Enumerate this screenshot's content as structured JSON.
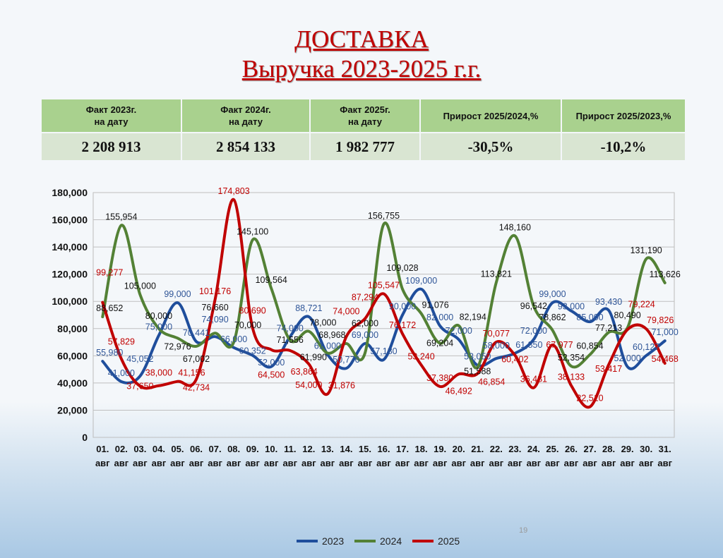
{
  "title_line1": "ДОСТАВКА",
  "title_line2": "Выручка 2023-2025 г.г. ",
  "summary_table": {
    "headers": [
      [
        "Факт 2023г.",
        "на дату"
      ],
      [
        "Факт 2024г.",
        "на дату"
      ],
      [
        "Факт 2025г.",
        "на дату"
      ],
      [
        "Прирост 2025/2024,%",
        ""
      ],
      [
        "Прирост 2025/2023,%",
        ""
      ]
    ],
    "values": [
      "2 208 913",
      "2 854 133",
      "1 982 777",
      "-30,5%",
      "-10,2%"
    ]
  },
  "page_number": "19",
  "chart_data": {
    "type": "line",
    "title": "",
    "xlabel": "",
    "ylabel": "",
    "ylim": [
      0,
      180000
    ],
    "yticks": [
      "0",
      "20,000",
      "40,000",
      "60,000",
      "80,000",
      "100,000",
      "120,000",
      "140,000",
      "160,000",
      "180,000"
    ],
    "grid": true,
    "legend_position": "bottom",
    "categories": [
      "01.",
      "02.",
      "03.",
      "04.",
      "05.",
      "06.",
      "07.",
      "08.",
      "09.",
      "10.",
      "11.",
      "12.",
      "13.",
      "14.",
      "15.",
      "16.",
      "17.",
      "18.",
      "19.",
      "20.",
      "21.",
      "22.",
      "23.",
      "24.",
      "25.",
      "26.",
      "27.",
      "28.",
      "29.",
      "30.",
      "31."
    ],
    "category_suffix": "авг",
    "series": [
      {
        "name": "2023",
        "color": "#1f4e9c",
        "label_color": "#2f5597",
        "values": [
          55980,
          41000,
          45052,
          75000,
          99000,
          70441,
          74090,
          66000,
          60352,
          52000,
          74000,
          88721,
          61000,
          50776,
          69000,
          57180,
          90000,
          109000,
          82000,
          72000,
          53050,
          58000,
          61850,
          72000,
          99000,
          93000,
          85000,
          93430,
          52000,
          60127,
          71000
        ]
      },
      {
        "name": "2024",
        "color": "#538135",
        "label_color": "#111111",
        "values": [
          88652,
          155954,
          105000,
          80000,
          72976,
          67002,
          76660,
          70000,
          145100,
          109564,
          71556,
          78000,
          61990,
          68968,
          62000,
          156755,
          109028,
          91076,
          69204,
          82194,
          51588,
          113821,
          148160,
          96542,
          78862,
          52354,
          60854,
          77213,
          80490,
          131190,
          113626
        ]
      },
      {
        "name": "2025",
        "color": "#c00000",
        "label_color": "#c00000",
        "values": [
          99277,
          57829,
          37650,
          38000,
          41156,
          42734,
          101176,
          174803,
          80690,
          64500,
          63864,
          54000,
          31876,
          74000,
          87294,
          105547,
          76172,
          53240,
          37380,
          46492,
          46854,
          70077,
          60402,
          36481,
          67977,
          38133,
          22510,
          53417,
          79224,
          79826,
          54468
        ]
      }
    ]
  }
}
